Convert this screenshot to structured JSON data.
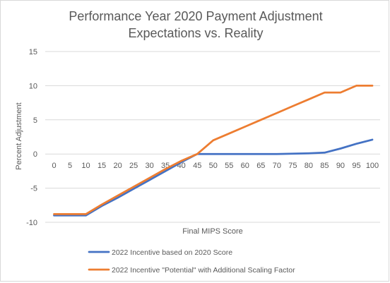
{
  "chart_data": {
    "type": "line",
    "title": [
      "Performance Year 2020 Payment Adjustment",
      "Expectations vs. Reality"
    ],
    "xlabel": "Final MIPS Score",
    "ylabel": "Percent Adjustment",
    "categories": [
      "0",
      "5",
      "10",
      "15",
      "20",
      "25",
      "30",
      "35",
      "40",
      "45",
      "50",
      "55",
      "60",
      "65",
      "70",
      "75",
      "80",
      "85",
      "90",
      "95",
      "100"
    ],
    "ylim": [
      -10,
      15
    ],
    "yticks": [
      -10,
      -5,
      0,
      5,
      10,
      15
    ],
    "ytick_labels": [
      "-10",
      "-5",
      "0",
      "5",
      "10",
      "15"
    ],
    "grid": "horizontal",
    "legend_position": "bottom",
    "series": [
      {
        "name": "2022 Incentive based on 2020 Score",
        "color": "#4472c4",
        "values": [
          -9,
          -9,
          -9,
          -7.6,
          -6.4,
          -5.1,
          -3.8,
          -2.5,
          -1.2,
          0,
          0,
          0,
          0,
          0,
          0,
          0.05,
          0.1,
          0.2,
          0.8,
          1.5,
          2.1
        ]
      },
      {
        "name": "2022 Incentive \"Potential\" with Additional Scaling Factor",
        "color": "#ed7d31",
        "values": [
          -8.8,
          -8.8,
          -8.8,
          -7.4,
          -6.1,
          -4.8,
          -3.5,
          -2.2,
          -1,
          0,
          2,
          3,
          4,
          5,
          6,
          7,
          8,
          9,
          9,
          10,
          10
        ]
      }
    ]
  }
}
